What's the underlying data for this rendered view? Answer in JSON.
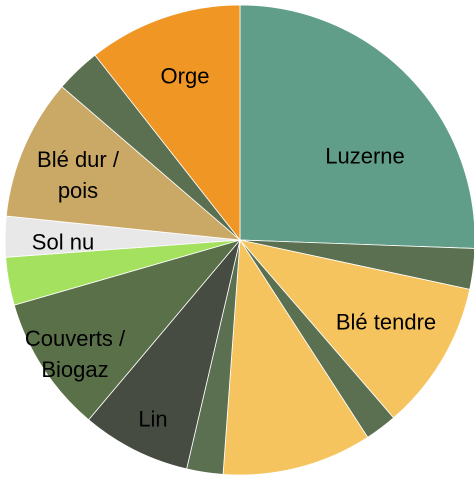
{
  "chart_data": {
    "type": "pie",
    "labels": [
      "Luzerne",
      null,
      "Blé tendre",
      null,
      null,
      null,
      "Lin",
      "Couverts / Biogaz",
      null,
      "Sol nu",
      "Blé dur / pois",
      null,
      "Orge"
    ],
    "values": [
      25.6,
      2.8,
      10.3,
      2.2,
      10.3,
      2.5,
      7.5,
      9.4,
      3.3,
      2.8,
      9.7,
      3.1,
      10.6
    ],
    "colors": [
      "#609e8a",
      "#5b7050",
      "#f6c45e",
      "#5b7050",
      "#f6c45e",
      "#5b7050",
      "#464c42",
      "#5a7048",
      "#a4e15e",
      "#e8e8e8",
      "#caa866",
      "#5b7050",
      "#ef9624"
    ]
  }
}
